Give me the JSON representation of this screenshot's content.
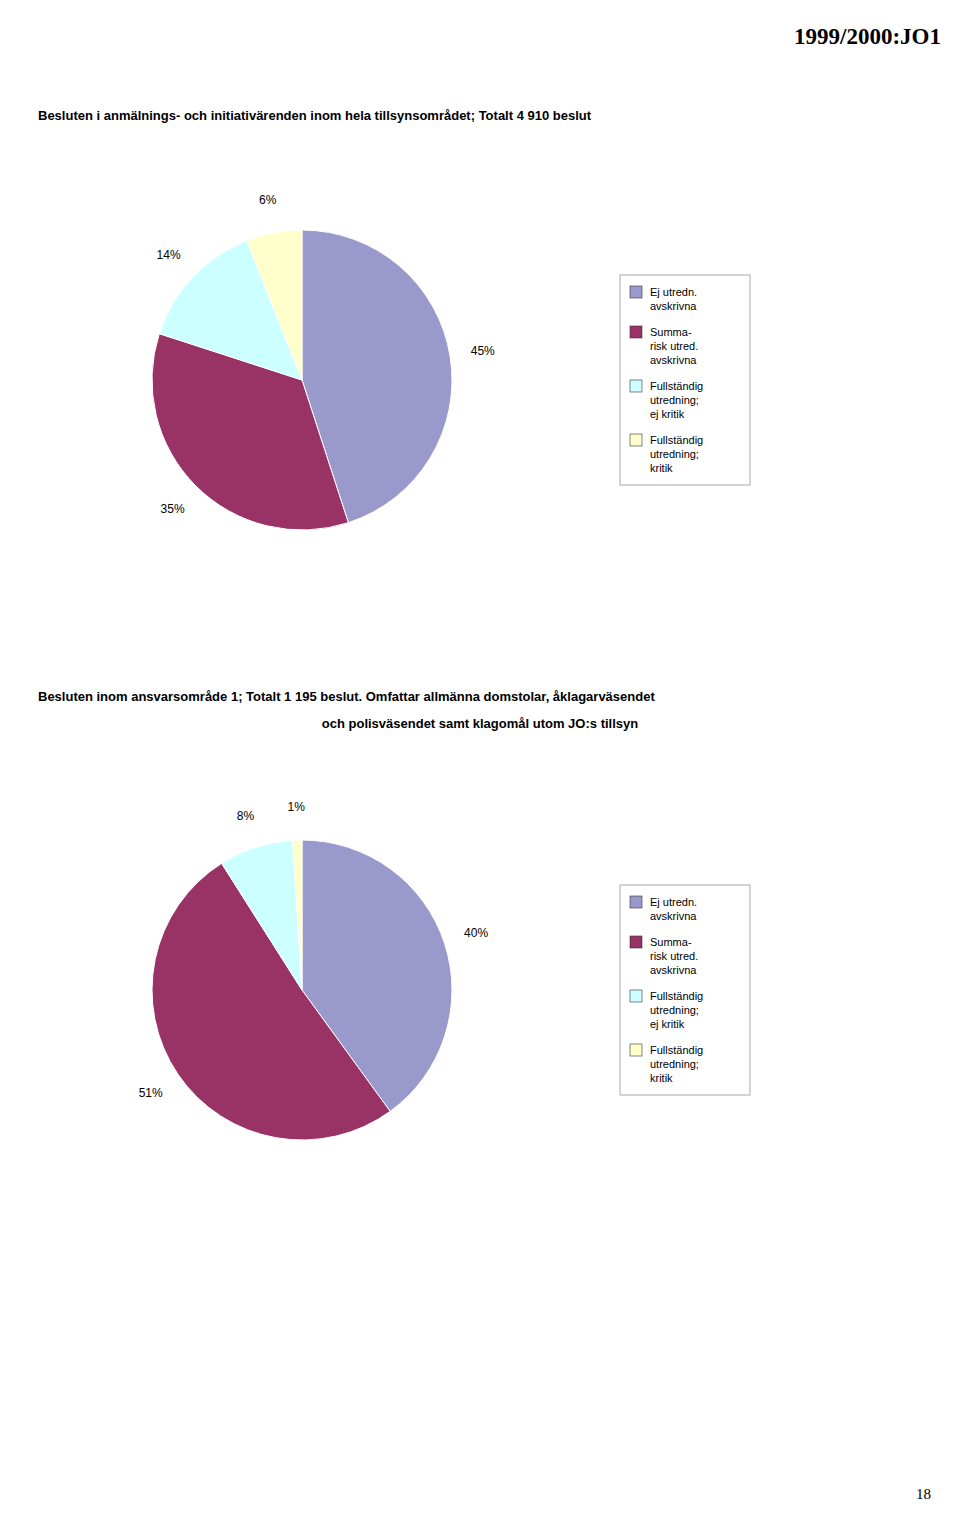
{
  "header": "1999/2000:JO1",
  "page_number": "18",
  "chart_data": [
    {
      "type": "pie",
      "title": "Besluten i anmälnings- och initiativärenden inom hela tillsynsområdet; Totalt 4 910 beslut",
      "categories": [
        "Ej utredn.\navskrivna",
        "Summa-\nrisk utred.\navskrivna",
        "Fullständig\nutredning;\nej kritik",
        "Fullständig\nutredning;\nkritik"
      ],
      "values": [
        45,
        35,
        14,
        6
      ],
      "value_labels": [
        "45%",
        "35%",
        "14%",
        "6%"
      ],
      "colors": [
        "#9999cc",
        "#993366",
        "#ccffff",
        "#ffffcc"
      ],
      "data_labels": true,
      "legend": "right"
    },
    {
      "type": "pie",
      "title": "Besluten inom ansvarsområde 1; Totalt 1 195 beslut. Omfattar allmänna domstolar, åklagarväsendet",
      "subtitle": "och polisväsendet samt klagomål utom JO:s tillsyn",
      "categories": [
        "Ej utredn.\navskrivna",
        "Summa-\nrisk utred.\navskrivna",
        "Fullständig\nutredning;\nej kritik",
        "Fullständig\nutredning;\nkritik"
      ],
      "values": [
        40,
        51,
        8,
        1
      ],
      "value_labels": [
        "40%",
        "51%",
        "8%",
        "1%"
      ],
      "colors": [
        "#9999cc",
        "#993366",
        "#ccffff",
        "#ffffcc"
      ],
      "data_labels": true,
      "legend": "right"
    }
  ]
}
